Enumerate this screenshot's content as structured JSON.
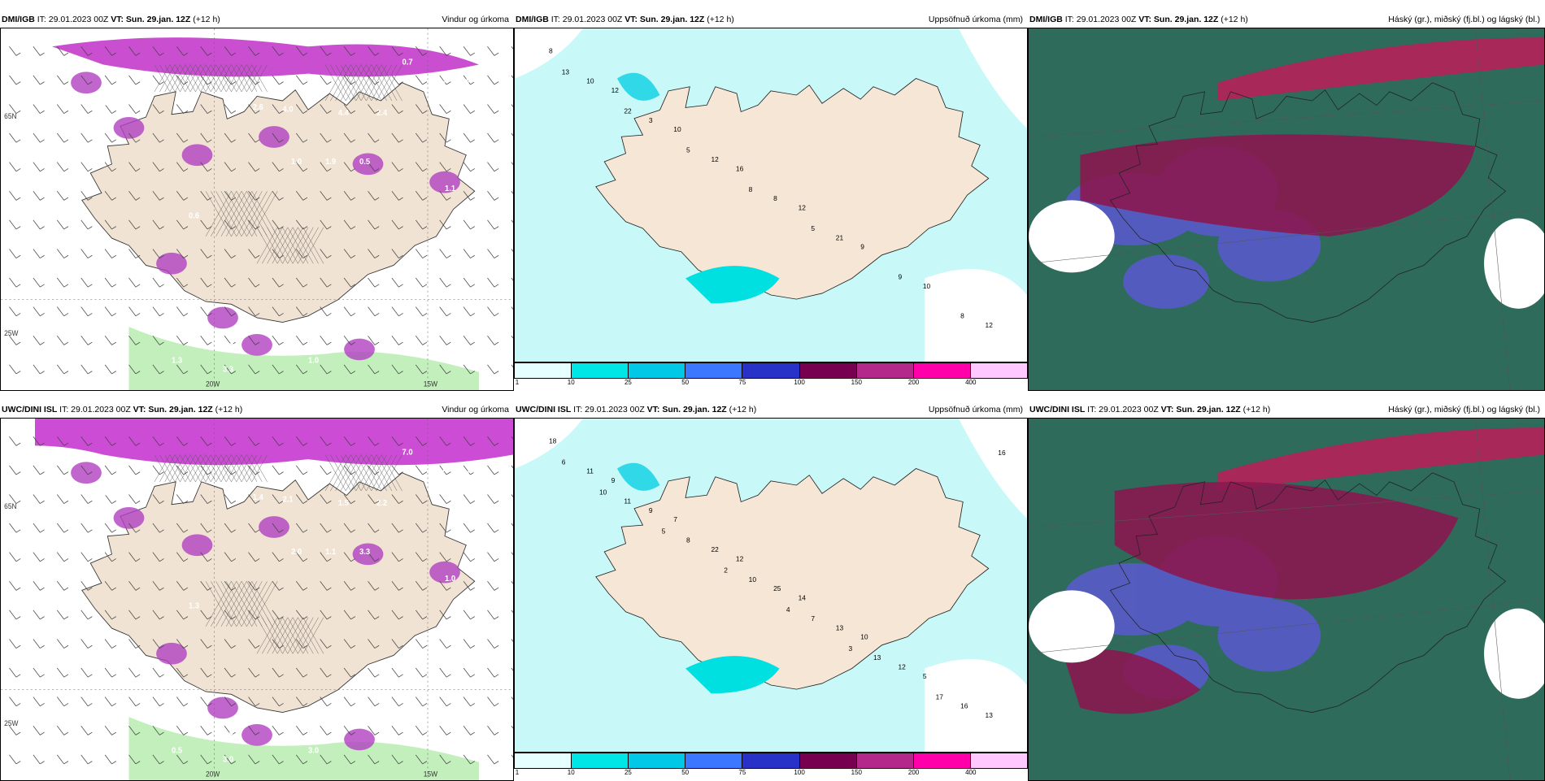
{
  "panels": [
    {
      "id": "p1",
      "model": "DMI/IGB",
      "it_label": "IT: 29.01.2023 00Z",
      "vt_label": "VT: Sun. 29.jan. 12Z",
      "lead": "(+12 h)",
      "product": "Vindur og úrkoma",
      "values": [
        "0.7",
        "0.9",
        "0.6",
        "0.5",
        "1.6",
        "2.6",
        "4.0",
        "4.4",
        "2.4",
        "1.0",
        "1.9",
        "0.5",
        "0.8",
        "1.1",
        "0.6",
        "3.3",
        "1.3",
        "1.0",
        "3.3",
        "4.4",
        "1.3",
        "0.8",
        "0.6"
      ],
      "axis_labels": [
        "20W",
        "15W",
        "65N",
        "25W"
      ]
    },
    {
      "id": "p2",
      "model": "DMI/IGB",
      "it_label": "IT: 29.01.2023 00Z",
      "vt_label": "VT: Sun. 29.jan. 12Z",
      "lead": "(+12 h)",
      "product": "Uppsöfnuð úrkoma (mm)",
      "values": [
        "8",
        "12",
        "10",
        "16",
        "12",
        "9",
        "10",
        "12",
        "10",
        "3",
        "12",
        "8",
        "21",
        "9",
        "8",
        "13",
        "22",
        "5",
        "8",
        "5"
      ],
      "colorbar": {
        "colors": [
          "#e6ffff",
          "#00e6e6",
          "#00c8e6",
          "#3c78ff",
          "#2832c8",
          "#780050",
          "#b4288c",
          "#ff00aa",
          "#ffc8ff"
        ],
        "ticks": [
          "1",
          "10",
          "25",
          "50",
          "75",
          "100",
          "150",
          "200",
          "400"
        ]
      }
    },
    {
      "id": "p3",
      "model": "DMI/IGB",
      "it_label": "IT: 29.01.2023 00Z",
      "vt_label": "VT: Sun. 29.jan. 12Z",
      "lead": "(+12 h)",
      "product": "Háský (gr.), miðský (fj.bl.) og lágský (bl.)"
    },
    {
      "id": "p4",
      "model": "UWC/DINI ISL",
      "it_label": "IT: 29.01.2023 00Z",
      "vt_label": "VT: Sun. 29.jan. 12Z",
      "lead": "(+12 h)",
      "product": "Vindur og úrkoma",
      "values": [
        "7.0",
        "1.4",
        "1.1",
        "0.9",
        "0.8",
        "1.4",
        "2.1",
        "1.5",
        "2.2",
        "2.0",
        "1.1",
        "3.3",
        "2.4",
        "1.0",
        "1.3",
        "2.0",
        "0.5",
        "3.0",
        "3.0",
        "0.6",
        "0.6",
        "1.3"
      ],
      "axis_labels": [
        "20W",
        "15W",
        "65N",
        "25W"
      ]
    },
    {
      "id": "p5",
      "model": "UWC/DINI ISL",
      "it_label": "IT: 29.01.2023 00Z",
      "vt_label": "VT: Sun. 29.jan. 12Z",
      "lead": "(+12 h)",
      "product": "Uppsöfnuð úrkoma (mm)",
      "values": [
        "18",
        "9",
        "7",
        "12",
        "14",
        "10",
        "5",
        "13",
        "11",
        "9",
        "22",
        "25",
        "13",
        "12",
        "16",
        "6",
        "11",
        "8",
        "10",
        "7",
        "13",
        "17",
        "16",
        "10",
        "5",
        "2",
        "4",
        "3"
      ],
      "colorbar": {
        "colors": [
          "#e6ffff",
          "#00e6e6",
          "#00c8e6",
          "#3c78ff",
          "#2832c8",
          "#780050",
          "#b4288c",
          "#ff00aa",
          "#ffc8ff"
        ],
        "ticks": [
          "1",
          "10",
          "25",
          "50",
          "75",
          "100",
          "150",
          "200",
          "400"
        ]
      }
    },
    {
      "id": "p6",
      "model": "UWC/DINI ISL",
      "it_label": "IT: 29.01.2023 00Z",
      "vt_label": "VT: Sun. 29.jan. 12Z",
      "lead": "(+12 h)",
      "product": "Háský (gr.), miðský (fj.bl.) og lágský (bl.)"
    }
  ]
}
